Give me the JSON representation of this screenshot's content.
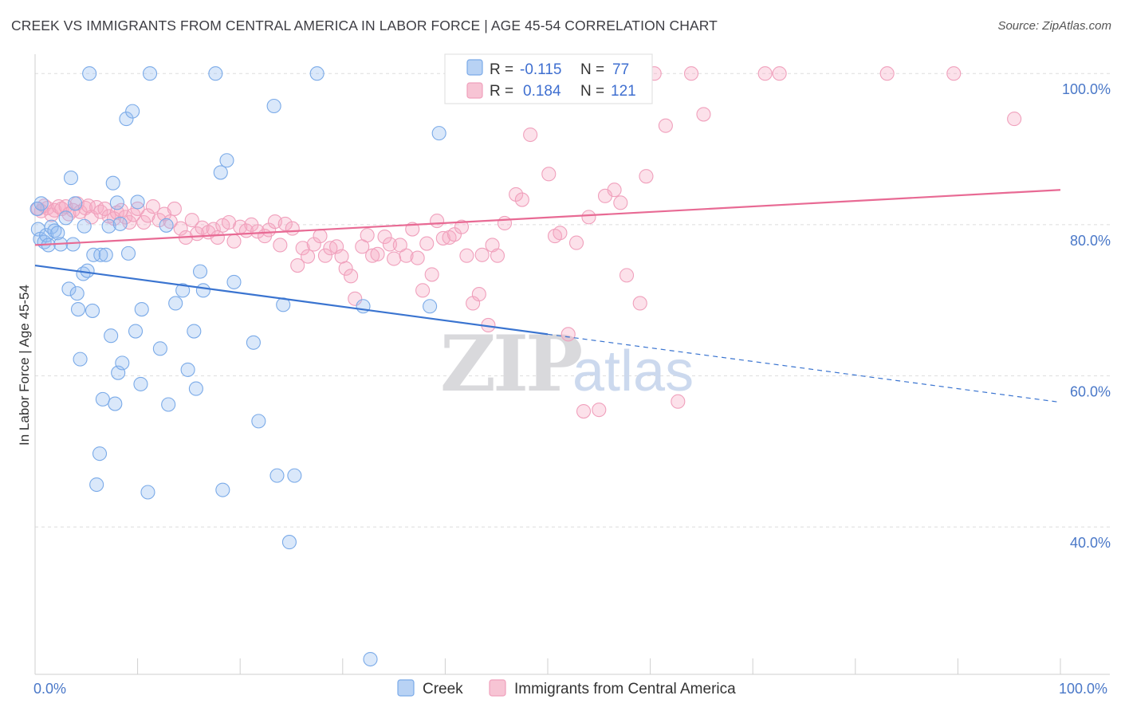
{
  "title": "CREEK VS IMMIGRANTS FROM CENTRAL AMERICA IN LABOR FORCE | AGE 45-54 CORRELATION CHART",
  "source": "Source: ZipAtlas.com",
  "watermark": {
    "zip": "ZIP",
    "atlas": "atlas"
  },
  "legend": {
    "series": [
      {
        "r_label": "R =",
        "r_value": "-0.115",
        "n_label": "N =",
        "n_value": "77"
      },
      {
        "r_label": "R =",
        "r_value": "0.184",
        "n_label": "N =",
        "n_value": "121"
      }
    ]
  },
  "chart_data": {
    "type": "scatter",
    "xlabel": "",
    "ylabel": "In Labor Force | Age 45-54",
    "xlim": [
      0,
      100
    ],
    "ylim": [
      20.5,
      101.5
    ],
    "x_tick_labels": [
      "0.0%",
      "100.0%"
    ],
    "y_ticks": [
      40,
      60,
      80,
      100
    ],
    "y_tick_labels": [
      "40.0%",
      "60.0%",
      "80.0%",
      "100.0%"
    ],
    "grid": true,
    "legend_position": "top-center",
    "colors": {
      "creek": "#7aaae8",
      "creek_line": "#3a74d0",
      "imm": "#f0a0bc",
      "imm_line": "#e86a94"
    },
    "series": [
      {
        "name": "Creek",
        "trend": {
          "x0": 0,
          "y0": 74.6,
          "x1": 50,
          "y1": 65.5,
          "dash_to_x": 100,
          "dash_to_y": 56.5
        },
        "points": [
          [
            0.2,
            82.1
          ],
          [
            0.3,
            79.4
          ],
          [
            0.5,
            78.1
          ],
          [
            0.6,
            82.8
          ],
          [
            0.9,
            77.7
          ],
          [
            1.1,
            78.6
          ],
          [
            1.3,
            77.3
          ],
          [
            1.6,
            79.7
          ],
          [
            1.9,
            79.2
          ],
          [
            2.2,
            78.9
          ],
          [
            2.5,
            77.4
          ],
          [
            3.0,
            80.9
          ],
          [
            3.3,
            71.5
          ],
          [
            3.5,
            86.2
          ],
          [
            3.7,
            77.4
          ],
          [
            3.9,
            82.8
          ],
          [
            4.1,
            70.9
          ],
          [
            4.2,
            68.8
          ],
          [
            4.4,
            62.2
          ],
          [
            4.7,
            73.5
          ],
          [
            4.8,
            79.8
          ],
          [
            5.3,
            100.0
          ],
          [
            5.1,
            73.9
          ],
          [
            5.6,
            68.6
          ],
          [
            5.7,
            76.0
          ],
          [
            6.0,
            45.6
          ],
          [
            6.3,
            49.7
          ],
          [
            6.4,
            76.0
          ],
          [
            6.6,
            56.9
          ],
          [
            6.9,
            76.0
          ],
          [
            7.2,
            79.8
          ],
          [
            7.4,
            65.3
          ],
          [
            7.6,
            85.5
          ],
          [
            7.8,
            56.3
          ],
          [
            8.0,
            82.9
          ],
          [
            8.1,
            60.4
          ],
          [
            8.3,
            80.1
          ],
          [
            8.5,
            61.7
          ],
          [
            8.9,
            94.0
          ],
          [
            9.1,
            76.2
          ],
          [
            9.5,
            95.0
          ],
          [
            9.8,
            65.9
          ],
          [
            10.0,
            83.0
          ],
          [
            10.3,
            58.9
          ],
          [
            10.4,
            68.8
          ],
          [
            11.0,
            44.6
          ],
          [
            11.2,
            100.0
          ],
          [
            12.2,
            63.6
          ],
          [
            12.8,
            79.9
          ],
          [
            13.0,
            56.2
          ],
          [
            13.7,
            69.6
          ],
          [
            14.4,
            71.3
          ],
          [
            14.9,
            60.8
          ],
          [
            15.5,
            65.9
          ],
          [
            15.7,
            58.3
          ],
          [
            16.1,
            73.8
          ],
          [
            16.4,
            71.3
          ],
          [
            17.6,
            100.0
          ],
          [
            18.1,
            86.9
          ],
          [
            18.3,
            44.9
          ],
          [
            18.7,
            88.5
          ],
          [
            19.4,
            72.4
          ],
          [
            21.3,
            64.4
          ],
          [
            21.8,
            54.0
          ],
          [
            23.3,
            95.7
          ],
          [
            23.6,
            46.8
          ],
          [
            24.2,
            69.4
          ],
          [
            24.8,
            38.0
          ],
          [
            25.3,
            46.8
          ],
          [
            27.5,
            100.0
          ],
          [
            32.0,
            69.2
          ],
          [
            32.7,
            22.5
          ],
          [
            38.5,
            69.2
          ],
          [
            39.4,
            92.1
          ]
        ]
      },
      {
        "name": "Immigrants from Central America",
        "trend": {
          "x0": 0,
          "y0": 77.3,
          "x1": 100,
          "y1": 84.6
        },
        "points": [
          [
            0.3,
            82.1
          ],
          [
            0.6,
            81.8
          ],
          [
            0.9,
            82.5
          ],
          [
            1.2,
            82.2
          ],
          [
            1.6,
            81.3
          ],
          [
            1.9,
            81.9
          ],
          [
            2.3,
            82.4
          ],
          [
            2.6,
            82.1
          ],
          [
            3.0,
            82.4
          ],
          [
            3.3,
            81.4
          ],
          [
            3.7,
            81.9
          ],
          [
            4.1,
            82.8
          ],
          [
            4.4,
            81.7
          ],
          [
            4.9,
            82.2
          ],
          [
            5.2,
            82.5
          ],
          [
            5.5,
            81.0
          ],
          [
            6.0,
            82.3
          ],
          [
            6.4,
            81.7
          ],
          [
            6.8,
            82.1
          ],
          [
            7.2,
            81.1
          ],
          [
            7.7,
            80.8
          ],
          [
            8.0,
            81.6
          ],
          [
            8.4,
            81.9
          ],
          [
            8.8,
            81.0
          ],
          [
            9.2,
            80.3
          ],
          [
            9.6,
            81.3
          ],
          [
            10.0,
            82.1
          ],
          [
            10.6,
            80.3
          ],
          [
            11.0,
            81.2
          ],
          [
            11.5,
            82.4
          ],
          [
            12.1,
            80.6
          ],
          [
            12.6,
            81.4
          ],
          [
            13.2,
            80.4
          ],
          [
            13.6,
            82.1
          ],
          [
            14.2,
            79.5
          ],
          [
            14.7,
            78.3
          ],
          [
            15.3,
            80.6
          ],
          [
            15.8,
            78.8
          ],
          [
            16.3,
            79.6
          ],
          [
            16.9,
            79.0
          ],
          [
            17.4,
            79.4
          ],
          [
            17.8,
            78.3
          ],
          [
            18.3,
            79.9
          ],
          [
            18.9,
            80.3
          ],
          [
            19.4,
            77.8
          ],
          [
            20.0,
            79.7
          ],
          [
            20.6,
            79.2
          ],
          [
            21.1,
            80.0
          ],
          [
            21.7,
            79.1
          ],
          [
            22.4,
            78.5
          ],
          [
            22.8,
            79.3
          ],
          [
            23.4,
            80.4
          ],
          [
            23.9,
            77.3
          ],
          [
            24.4,
            80.1
          ],
          [
            25.1,
            79.5
          ],
          [
            25.6,
            74.6
          ],
          [
            26.1,
            76.9
          ],
          [
            26.6,
            75.8
          ],
          [
            27.2,
            77.4
          ],
          [
            27.8,
            78.5
          ],
          [
            28.3,
            75.9
          ],
          [
            28.8,
            76.9
          ],
          [
            29.4,
            77.1
          ],
          [
            29.9,
            75.8
          ],
          [
            30.3,
            74.2
          ],
          [
            30.8,
            73.2
          ],
          [
            31.2,
            70.2
          ],
          [
            31.9,
            77.1
          ],
          [
            32.4,
            78.6
          ],
          [
            32.9,
            75.9
          ],
          [
            33.4,
            76.1
          ],
          [
            34.1,
            78.4
          ],
          [
            34.6,
            77.4
          ],
          [
            35.0,
            75.5
          ],
          [
            35.6,
            77.3
          ],
          [
            36.2,
            75.9
          ],
          [
            36.8,
            79.4
          ],
          [
            37.3,
            75.6
          ],
          [
            37.8,
            71.3
          ],
          [
            38.2,
            77.5
          ],
          [
            38.7,
            73.4
          ],
          [
            39.2,
            80.5
          ],
          [
            39.8,
            78.2
          ],
          [
            40.4,
            78.3
          ],
          [
            40.9,
            78.7
          ],
          [
            41.6,
            79.7
          ],
          [
            42.1,
            75.9
          ],
          [
            42.7,
            69.6
          ],
          [
            43.3,
            70.8
          ],
          [
            43.6,
            76.0
          ],
          [
            44.2,
            66.7
          ],
          [
            44.6,
            77.3
          ],
          [
            45.1,
            75.9
          ],
          [
            45.8,
            80.2
          ],
          [
            46.4,
            98.9
          ],
          [
            46.9,
            84.0
          ],
          [
            47.5,
            83.3
          ],
          [
            48.3,
            91.9
          ],
          [
            49.3,
            100.0
          ],
          [
            50.1,
            86.7
          ],
          [
            50.7,
            78.5
          ],
          [
            51.2,
            78.9
          ],
          [
            52.0,
            65.5
          ],
          [
            52.8,
            77.6
          ],
          [
            53.5,
            55.3
          ],
          [
            54.0,
            81.0
          ],
          [
            55.0,
            55.5
          ],
          [
            55.6,
            83.8
          ],
          [
            56.5,
            84.6
          ],
          [
            57.1,
            82.9
          ],
          [
            57.7,
            73.3
          ],
          [
            58.2,
            99.3
          ],
          [
            59.0,
            69.6
          ],
          [
            59.6,
            86.4
          ],
          [
            60.4,
            100.0
          ],
          [
            61.5,
            93.1
          ],
          [
            62.7,
            56.6
          ],
          [
            64.0,
            100.0
          ],
          [
            65.2,
            94.6
          ],
          [
            71.2,
            100.0
          ],
          [
            72.6,
            100.0
          ],
          [
            83.1,
            100.0
          ],
          [
            89.6,
            100.0
          ],
          [
            95.5,
            94.0
          ]
        ]
      }
    ]
  }
}
